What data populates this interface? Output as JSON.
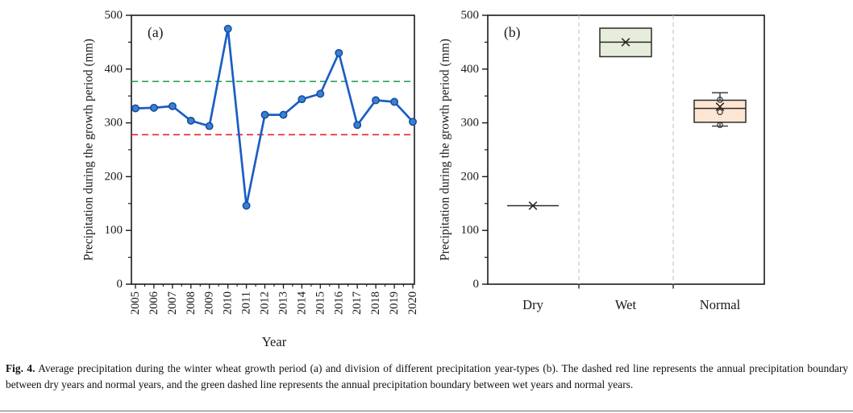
{
  "figure": {
    "caption_label": "Fig. 4.",
    "caption_text": "Average precipitation during the winter wheat growth period (a) and division of different precipitation year-types (b). The dashed red line represents the annual precipitation boundary between dry years and normal years, and the green dashed line represents the annual precipitation boundary between wet years and normal years."
  },
  "style": {
    "frame": "#1a1a1a",
    "separator": "#c9c9c9",
    "box_edge": "#2b2b2b",
    "mean_marker": "#222222"
  },
  "chart_data": [
    {
      "type": "line",
      "panel_label": "(a)",
      "xlabel": "Year",
      "ylabel": "Precipitation during the growth period (mm)",
      "ylim": [
        0,
        500
      ],
      "yticks": [
        0,
        100,
        200,
        300,
        400,
        500
      ],
      "ytick_minor_step": 50,
      "grid": false,
      "categories": [
        "2005",
        "2006",
        "2007",
        "2008",
        "2009",
        "2010",
        "2011",
        "2012",
        "2013",
        "2014",
        "2015",
        "2016",
        "2017",
        "2018",
        "2019",
        "2020"
      ],
      "values": [
        327,
        328,
        331,
        304,
        294,
        475,
        146,
        315,
        315,
        344,
        354,
        430,
        296,
        342,
        339,
        302
      ],
      "reference_lines": [
        {
          "name": "wet-normal-boundary",
          "value": 377,
          "color": "#2aa35a",
          "style": "dashed"
        },
        {
          "name": "dry-normal-boundary",
          "value": 278,
          "color": "#ed2024",
          "style": "dashed"
        }
      ],
      "line_color": "#1b5ec4",
      "marker": "circle",
      "marker_fill": "#3d80d0",
      "marker_edge": "#124a9e"
    },
    {
      "type": "box",
      "panel_label": "(b)",
      "xlabel": "",
      "ylabel": "Precipitation during the growth period (mm)",
      "ylim": [
        0,
        500
      ],
      "yticks": [
        0,
        100,
        200,
        300,
        400,
        500
      ],
      "ytick_minor_step": 50,
      "grid": false,
      "categories": [
        "Dry",
        "Wet",
        "Normal"
      ],
      "boxes": [
        {
          "category": "Dry",
          "single_value": 146,
          "mean": 146
        },
        {
          "category": "Wet",
          "q1": 423,
          "median": 450,
          "q3": 476,
          "mean": 450,
          "fill": "#e6edda"
        },
        {
          "category": "Normal",
          "q1": 301,
          "median": 327,
          "q3": 342,
          "whisker_low": 294,
          "whisker_high": 356,
          "mean": 330,
          "points": [
            343,
            320,
            296
          ],
          "fill": "#fde6d3"
        }
      ]
    }
  ]
}
